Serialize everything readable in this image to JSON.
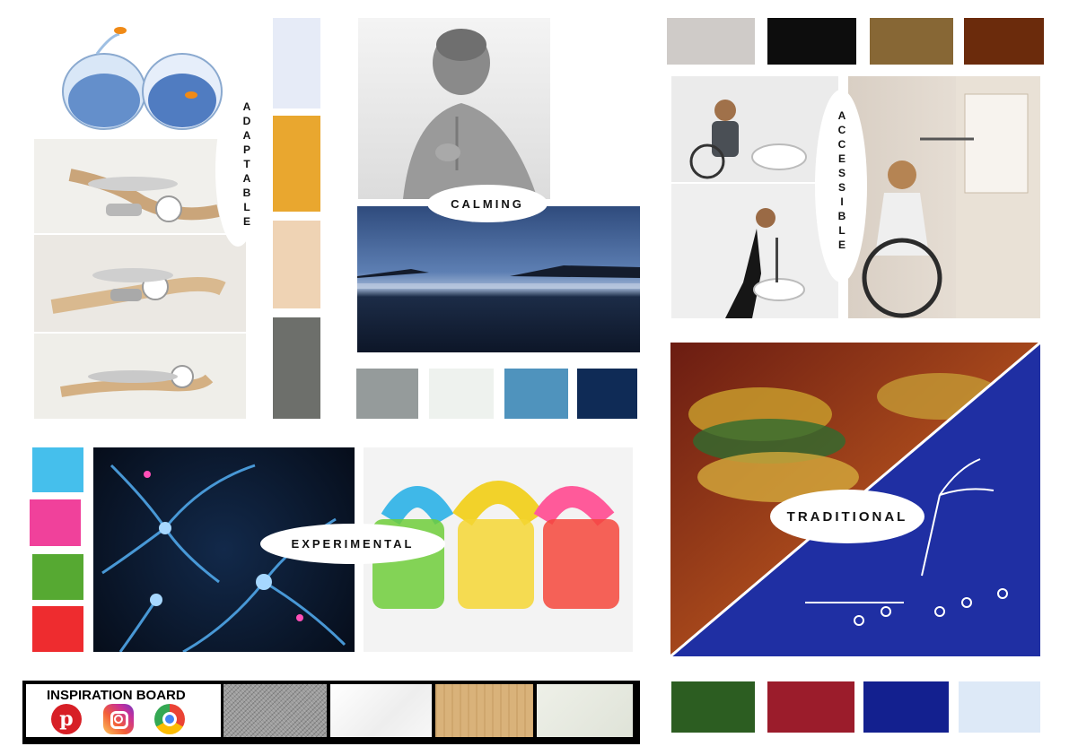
{
  "board": {
    "title": "INSPIRATION BOARD",
    "icons": [
      "pinterest-icon",
      "instagram-icon",
      "chrome-icon"
    ]
  },
  "labels": {
    "adaptable": "ADAPTABLE",
    "calming": "CALMING",
    "accessible": "ACCESSIBLE",
    "experimental": "EXPERIMENTAL",
    "traditional": "TRADITIONAL"
  },
  "palettes": {
    "adaptable": [
      "#e6ebf7",
      "#e9a72f",
      "#efd3b4",
      "#6d6f6b"
    ],
    "calming": [
      "#959b9b",
      "#eef2ee",
      "#4f93bd",
      "#0f2b56"
    ],
    "accessible": [
      "#cfcbc8",
      "#0d0d0d",
      "#876735",
      "#6b2b0c"
    ],
    "experimental": [
      "#45bfec",
      "#f0419b",
      "#56a932",
      "#ee2c2f"
    ],
    "traditional": [
      "#2c5d21",
      "#9b1c2b",
      "#13208f",
      "#dde9f7"
    ],
    "materials": [
      "granite",
      "white-stone",
      "light-wood",
      "off-white-plaster"
    ]
  }
}
